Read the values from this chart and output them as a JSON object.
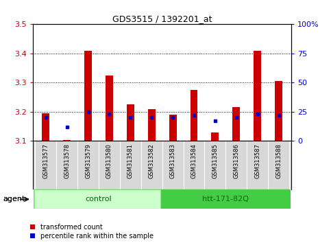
{
  "title": "GDS3515 / 1392201_at",
  "samples": [
    "GSM313577",
    "GSM313578",
    "GSM313579",
    "GSM313580",
    "GSM313581",
    "GSM313582",
    "GSM313583",
    "GSM313584",
    "GSM313585",
    "GSM313586",
    "GSM313587",
    "GSM313588"
  ],
  "red_values": [
    3.195,
    3.103,
    3.41,
    3.325,
    3.225,
    3.21,
    3.19,
    3.275,
    3.13,
    3.215,
    3.41,
    3.305
  ],
  "blue_values_pct": [
    20,
    12,
    25,
    23,
    20,
    20,
    20,
    22,
    17,
    20,
    23,
    22
  ],
  "ymin": 3.1,
  "ymax": 3.5,
  "yticks": [
    3.1,
    3.2,
    3.3,
    3.4,
    3.5
  ],
  "right_yticks": [
    0,
    25,
    50,
    75,
    100
  ],
  "right_ytick_labels": [
    "0",
    "25",
    "50",
    "75",
    "100%"
  ],
  "bar_color": "#cc0000",
  "blue_color": "#0000cc",
  "group_control_light": "#ccffcc",
  "group_control_dark": "#44cc44",
  "group_htt_light": "#44cc44",
  "group_htt_dark": "#44cc44",
  "group_text_color": "#006600",
  "agent_label": "agent",
  "legend_items": [
    "transformed count",
    "percentile rank within the sample"
  ],
  "axis_label_red": "#cc0000",
  "axis_label_blue": "#0000cc",
  "bar_width": 0.35
}
